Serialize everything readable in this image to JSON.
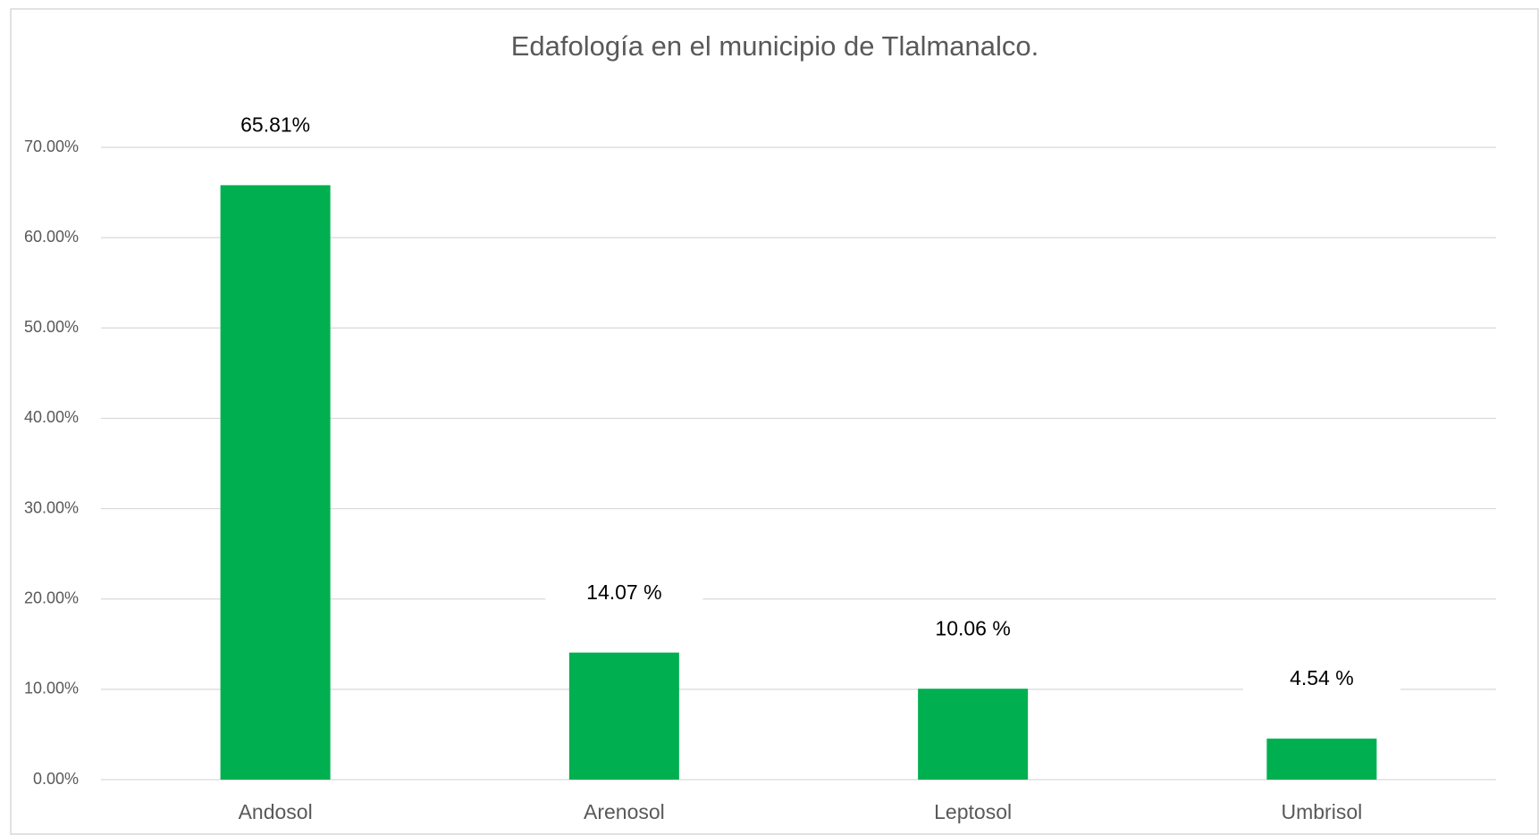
{
  "chart_data": {
    "type": "bar",
    "title": "Edafología en el municipio de Tlalmanalco.",
    "categories": [
      "Andosol",
      "Arenosol",
      "Leptosol",
      "Umbrisol"
    ],
    "values": [
      65.81,
      14.07,
      10.06,
      4.54
    ],
    "value_labels": [
      "65.81%",
      "14.07 %",
      "10.06 %",
      "4.54 %"
    ],
    "color": "#00b050",
    "ylim": [
      0,
      70
    ],
    "yticks": [
      {
        "value": 0,
        "label": "0.00%"
      },
      {
        "value": 10,
        "label": "10.00%"
      },
      {
        "value": 20,
        "label": "20.00%"
      },
      {
        "value": 30,
        "label": "30.00%"
      },
      {
        "value": 40,
        "label": "40.00%"
      },
      {
        "value": 50,
        "label": "50.00%"
      },
      {
        "value": 60,
        "label": "60.00%"
      },
      {
        "value": 70,
        "label": "70.00%"
      }
    ],
    "grid": true
  }
}
